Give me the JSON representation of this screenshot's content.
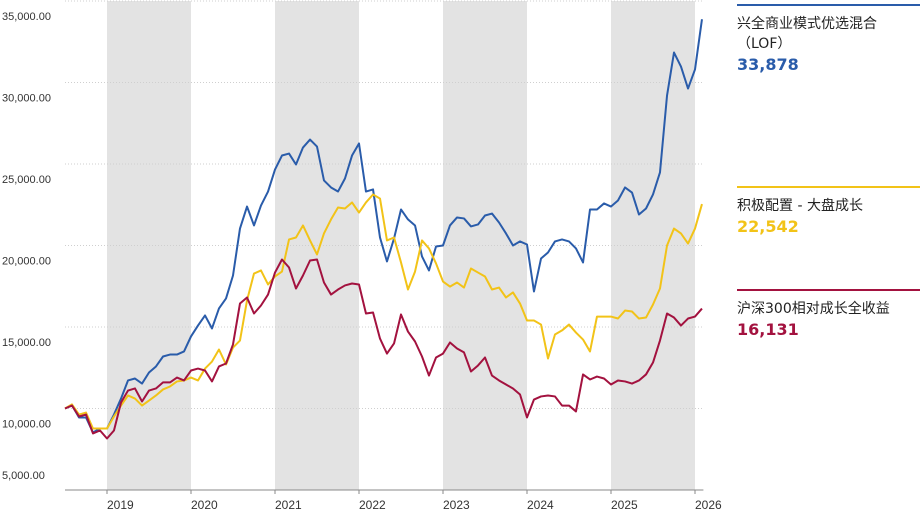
{
  "chart_data": {
    "type": "line",
    "x": [
      2018.5,
      2018.583,
      2018.667,
      2018.75,
      2018.833,
      2018.917,
      2019,
      2019.083,
      2019.167,
      2019.25,
      2019.333,
      2019.417,
      2019.5,
      2019.583,
      2019.667,
      2019.75,
      2019.833,
      2019.917,
      2020,
      2020.083,
      2020.167,
      2020.25,
      2020.333,
      2020.417,
      2020.5,
      2020.583,
      2020.667,
      2020.75,
      2020.833,
      2020.917,
      2021,
      2021.083,
      2021.167,
      2021.25,
      2021.333,
      2021.417,
      2021.5,
      2021.583,
      2021.667,
      2021.75,
      2021.833,
      2021.917,
      2022,
      2022.083,
      2022.167,
      2022.25,
      2022.333,
      2022.417,
      2022.5,
      2022.583,
      2022.667,
      2022.75,
      2022.833,
      2022.917,
      2023,
      2023.083,
      2023.167,
      2023.25,
      2023.333,
      2023.417,
      2023.5,
      2023.583,
      2023.667,
      2023.75,
      2023.833,
      2023.917,
      2024,
      2024.083,
      2024.167,
      2024.25,
      2024.333,
      2024.417,
      2024.5,
      2024.583,
      2024.667,
      2024.75,
      2024.833,
      2024.917,
      2025,
      2025.083,
      2025.167,
      2025.25,
      2025.333,
      2025.417,
      2025.5,
      2025.583,
      2025.667,
      2025.75,
      2025.833,
      2025.917,
      2026,
      2026.083
    ],
    "series": [
      {
        "name": "兴全商业模式优选混合（LOF）",
        "color": "#2a5caa",
        "end_label": "33,878",
        "values": [
          10000,
          10200,
          9450,
          9450,
          8530,
          8770,
          8770,
          9630,
          10610,
          11720,
          11840,
          11530,
          12210,
          12580,
          13190,
          13310,
          13310,
          13500,
          14420,
          15090,
          15710,
          14910,
          16140,
          16750,
          18160,
          21040,
          22390,
          21230,
          22450,
          23310,
          24660,
          25520,
          25640,
          24970,
          26010,
          26500,
          26070,
          23990,
          23560,
          23310,
          24110,
          25520,
          26260,
          23310,
          23440,
          20490,
          19020,
          20430,
          22210,
          21600,
          21230,
          19330,
          18470,
          19940,
          20000,
          21230,
          21720,
          21660,
          21170,
          21290,
          21840,
          21960,
          21410,
          20740,
          20000,
          20250,
          20060,
          17180,
          19200,
          19570,
          20250,
          20370,
          20250,
          19820,
          18960,
          22210,
          22210,
          22580,
          22390,
          22760,
          23560,
          23250,
          21900,
          22270,
          23130,
          24480,
          29200,
          31840,
          30980,
          29630,
          30800,
          33878
        ]
      },
      {
        "name": "积极配置 - 大盘成长",
        "color": "#f2c318",
        "end_label": "22,542",
        "values": [
          10000,
          10250,
          9630,
          9750,
          8770,
          8770,
          8770,
          9510,
          10180,
          10800,
          10610,
          10180,
          10490,
          10800,
          11170,
          11350,
          11660,
          11720,
          11900,
          11720,
          12450,
          12880,
          13620,
          12700,
          13740,
          14170,
          16630,
          18280,
          18470,
          17610,
          18100,
          18400,
          20370,
          20490,
          21230,
          20310,
          19450,
          20740,
          21600,
          22330,
          22270,
          22640,
          22020,
          22640,
          23130,
          22880,
          20310,
          20490,
          18960,
          17300,
          18400,
          20310,
          19820,
          18900,
          17790,
          17480,
          17730,
          17420,
          18590,
          18340,
          18100,
          17300,
          17420,
          16810,
          17120,
          16440,
          15400,
          15400,
          15150,
          13070,
          14540,
          14790,
          15150,
          14660,
          14230,
          13500,
          15640,
          15640,
          15640,
          15520,
          16010,
          15950,
          15520,
          15580,
          16380,
          17360,
          20000,
          21040,
          20740,
          20120,
          21040,
          22542
        ]
      },
      {
        "name": "沪深300相对成长全收益",
        "color": "#a3123f",
        "end_label": "16,131",
        "values": [
          10000,
          10180,
          9510,
          9630,
          8470,
          8650,
          8160,
          8650,
          10370,
          11100,
          11230,
          10430,
          11100,
          11230,
          11600,
          11600,
          11900,
          11720,
          12330,
          12450,
          12330,
          11660,
          12580,
          12760,
          13930,
          16440,
          16810,
          15830,
          16320,
          16990,
          18340,
          19140,
          18650,
          17360,
          18160,
          19080,
          19140,
          17730,
          16990,
          17300,
          17550,
          17670,
          17610,
          15830,
          15890,
          14290,
          13370,
          13990,
          15770,
          14720,
          14110,
          13190,
          12020,
          13130,
          13370,
          14050,
          13680,
          13440,
          12270,
          12640,
          13130,
          12020,
          11720,
          11470,
          11230,
          10860,
          9450,
          10550,
          10740,
          10800,
          10740,
          10180,
          10180,
          9820,
          12090,
          11780,
          11960,
          11840,
          11470,
          11720,
          11660,
          11530,
          11720,
          12090,
          12820,
          14170,
          15830,
          15580,
          15090,
          15520,
          15640,
          16131
        ]
      }
    ],
    "xlim": [
      2018.5,
      2026.1
    ],
    "xticks": [
      2019,
      2020,
      2021,
      2022,
      2023,
      2024,
      2025,
      2026
    ],
    "ylim": [
      5000,
      35000
    ],
    "yticks": [
      {
        "value": 5000,
        "label": "5,000.00"
      },
      {
        "value": 10000,
        "label": "10,000.00"
      },
      {
        "value": 15000,
        "label": "15,000.00"
      },
      {
        "value": 20000,
        "label": "20,000.00"
      },
      {
        "value": 25000,
        "label": "25,000.00"
      },
      {
        "value": 30000,
        "label": "30,000.00"
      },
      {
        "value": 35000,
        "label": "35,000.00"
      }
    ],
    "grid": true
  }
}
